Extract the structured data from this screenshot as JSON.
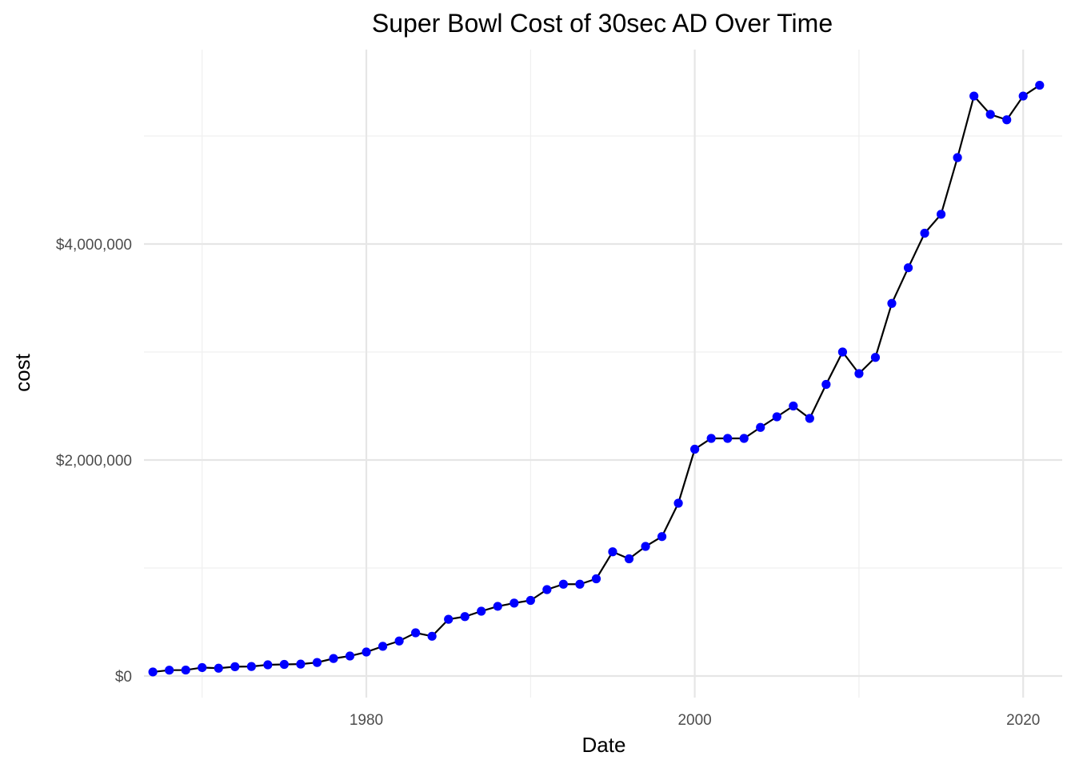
{
  "chart_data": {
    "type": "line",
    "title": "Super Bowl Cost of 30sec AD Over Time",
    "xlabel": "Date",
    "ylabel": "cost",
    "x_ticks": [
      "1980",
      "2000",
      "2020"
    ],
    "y_ticks": [
      "$0",
      "$2,000,000",
      "$4,000,000"
    ],
    "xlim": [
      "1966-07-01",
      "2022-06-01"
    ],
    "ylim": [
      -200000,
      5800000
    ],
    "x_tick_values": [
      "1980-01-15",
      "2000-01-15",
      "2020-01-15"
    ],
    "x_minor_tick_values": [
      "1970-01-15",
      "1990-01-15",
      "2010-01-15"
    ],
    "y_tick_values": [
      0,
      2000000,
      4000000
    ],
    "y_minor_tick_values": [
      1000000,
      3000000,
      5000000
    ],
    "grid": true,
    "point_color": "#0000ff",
    "line_color": "#000000",
    "series": [
      {
        "x": [
          "1967-01-15",
          "1968-01-15",
          "1969-01-15",
          "1970-01-15",
          "1971-01-15",
          "1972-01-15",
          "1973-01-15",
          "1974-01-15",
          "1975-01-15",
          "1976-01-15",
          "1977-01-15",
          "1978-01-15",
          "1979-01-15",
          "1980-01-15",
          "1981-01-15",
          "1982-01-15",
          "1983-01-15",
          "1984-01-15",
          "1985-01-15",
          "1986-01-15",
          "1987-01-15",
          "1988-01-15",
          "1989-01-15",
          "1990-01-15",
          "1991-01-15",
          "1992-01-15",
          "1993-01-15",
          "1994-01-15",
          "1995-01-15",
          "1996-01-15",
          "1997-01-15",
          "1998-01-15",
          "1999-01-15",
          "2000-01-15",
          "2001-01-15",
          "2002-01-15",
          "2003-01-15",
          "2004-01-15",
          "2005-01-15",
          "2006-01-15",
          "2007-01-15",
          "2008-01-15",
          "2009-01-15",
          "2010-01-15",
          "2011-01-15",
          "2012-01-15",
          "2013-01-15",
          "2014-01-15",
          "2015-01-15",
          "2016-01-15",
          "2017-01-15",
          "2018-01-15",
          "2019-01-15",
          "2020-01-15",
          "2021-01-15"
        ],
        "y": [
          37500,
          54000,
          55000,
          78000,
          72000,
          86000,
          88000,
          103500,
          107500,
          110000,
          125000,
          162000,
          185000,
          222000,
          275000,
          324000,
          400000,
          368000,
          525000,
          550000,
          600000,
          645000,
          675000,
          700000,
          800000,
          850000,
          850000,
          900000,
          1150000,
          1085000,
          1200000,
          1291000,
          1600000,
          2100000,
          2200000,
          2200000,
          2200000,
          2302000,
          2400000,
          2500000,
          2385000,
          2700000,
          3000000,
          2800000,
          2950000,
          3450000,
          3780000,
          4100000,
          4275000,
          4800000,
          5370000,
          5200000,
          5150000,
          5370000,
          5470000
        ]
      }
    ]
  }
}
